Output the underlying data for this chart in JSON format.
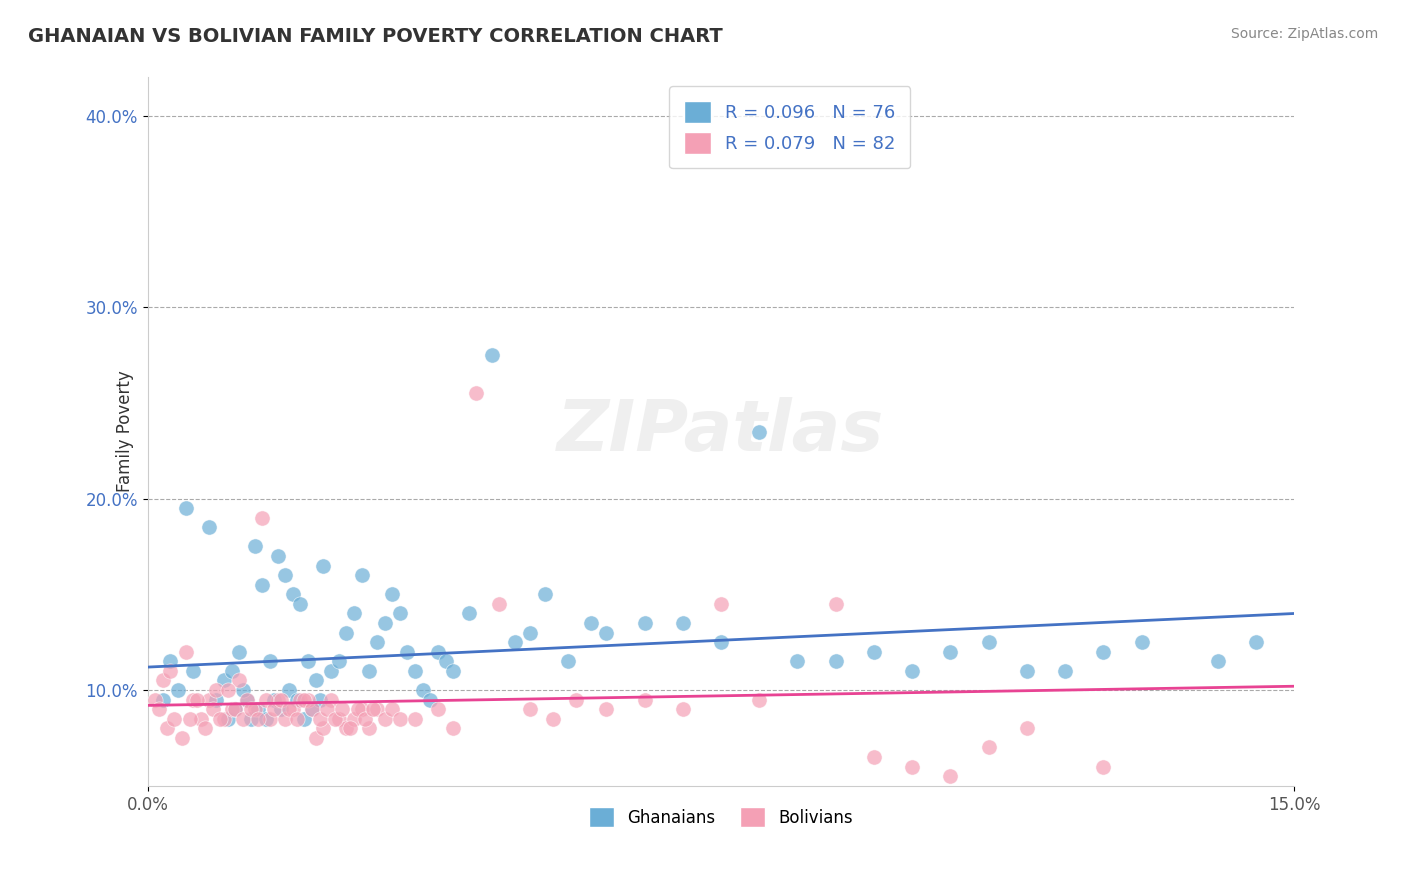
{
  "title": "GHANAIAN VS BOLIVIAN FAMILY POVERTY CORRELATION CHART",
  "source": "Source: ZipAtlas.com",
  "xlabel_ticks": [
    "0.0%",
    "15.0%"
  ],
  "ylabel_ticks": [
    "10.0%",
    "20.0%",
    "30.0%",
    "40.0%"
  ],
  "xlim": [
    0.0,
    15.0
  ],
  "ylim": [
    5.0,
    42.0
  ],
  "ytick_vals": [
    10.0,
    20.0,
    30.0,
    40.0
  ],
  "xtick_vals": [
    0.0,
    15.0
  ],
  "ghanaian_color": "#6baed6",
  "bolivian_color": "#f4a0b5",
  "ghanaian_line_color": "#4472c4",
  "bolivian_line_color": "#e84393",
  "R_ghanaian": 0.096,
  "N_ghanaian": 76,
  "R_bolivian": 0.079,
  "N_bolivian": 82,
  "ghanaian_trend": [
    11.2,
    14.0
  ],
  "bolivian_trend": [
    9.2,
    10.2
  ],
  "watermark": "ZIPatlas",
  "legend_labels": [
    "Ghanaians",
    "Bolivians"
  ],
  "ghanaian_scatter_x": [
    0.3,
    0.5,
    0.8,
    1.0,
    1.1,
    1.2,
    1.3,
    1.4,
    1.5,
    1.6,
    1.7,
    1.8,
    1.9,
    2.0,
    2.1,
    2.2,
    2.3,
    2.4,
    2.5,
    2.6,
    2.7,
    2.8,
    2.9,
    3.0,
    3.1,
    3.2,
    3.3,
    3.4,
    3.5,
    3.6,
    3.7,
    3.8,
    3.9,
    4.0,
    4.2,
    4.5,
    4.8,
    5.0,
    5.2,
    5.5,
    5.8,
    6.0,
    6.5,
    7.0,
    7.5,
    8.0,
    8.5,
    9.0,
    9.5,
    10.0,
    10.5,
    11.0,
    11.5,
    12.0,
    12.5,
    13.0,
    14.0,
    14.5,
    0.2,
    0.4,
    0.6,
    0.9,
    1.05,
    1.15,
    1.25,
    1.35,
    1.45,
    1.55,
    1.65,
    1.75,
    1.85,
    1.95,
    2.05,
    2.15,
    2.25
  ],
  "ghanaian_scatter_y": [
    11.5,
    19.5,
    18.5,
    10.5,
    11.0,
    12.0,
    9.5,
    17.5,
    15.5,
    11.5,
    17.0,
    16.0,
    15.0,
    14.5,
    11.5,
    10.5,
    16.5,
    11.0,
    11.5,
    13.0,
    14.0,
    16.0,
    11.0,
    12.5,
    13.5,
    15.0,
    14.0,
    12.0,
    11.0,
    10.0,
    9.5,
    12.0,
    11.5,
    11.0,
    14.0,
    27.5,
    12.5,
    13.0,
    15.0,
    11.5,
    13.5,
    13.0,
    13.5,
    13.5,
    12.5,
    23.5,
    11.5,
    11.5,
    12.0,
    11.0,
    12.0,
    12.5,
    11.0,
    11.0,
    12.0,
    12.5,
    11.5,
    12.5,
    9.5,
    10.0,
    11.0,
    9.5,
    8.5,
    9.0,
    10.0,
    8.5,
    9.0,
    8.5,
    9.5,
    9.0,
    10.0,
    9.5,
    8.5,
    9.0,
    9.5
  ],
  "bolivian_scatter_x": [
    0.1,
    0.2,
    0.3,
    0.5,
    0.6,
    0.7,
    0.8,
    0.9,
    1.0,
    1.1,
    1.2,
    1.3,
    1.4,
    1.5,
    1.6,
    1.7,
    1.8,
    1.9,
    2.0,
    2.1,
    2.2,
    2.3,
    2.4,
    2.5,
    2.6,
    2.7,
    2.8,
    2.9,
    3.0,
    3.1,
    3.2,
    3.3,
    3.5,
    3.8,
    4.0,
    4.3,
    4.6,
    5.0,
    5.3,
    5.6,
    6.0,
    6.5,
    7.0,
    7.5,
    8.0,
    9.0,
    9.5,
    10.0,
    10.5,
    11.0,
    11.5,
    12.5,
    0.15,
    0.25,
    0.35,
    0.45,
    0.55,
    0.65,
    0.75,
    0.85,
    0.95,
    1.05,
    1.15,
    1.25,
    1.35,
    1.45,
    1.55,
    1.65,
    1.75,
    1.85,
    1.95,
    2.05,
    2.15,
    2.25,
    2.35,
    2.45,
    2.55,
    2.65,
    2.75,
    2.85,
    2.95
  ],
  "bolivian_scatter_y": [
    9.5,
    10.5,
    11.0,
    12.0,
    9.5,
    8.5,
    9.5,
    10.0,
    8.5,
    9.0,
    10.5,
    9.5,
    9.0,
    19.0,
    8.5,
    9.5,
    8.5,
    9.0,
    9.5,
    9.5,
    7.5,
    8.0,
    9.5,
    8.5,
    8.0,
    8.5,
    9.0,
    8.0,
    9.0,
    8.5,
    9.0,
    8.5,
    8.5,
    9.0,
    8.0,
    25.5,
    14.5,
    9.0,
    8.5,
    9.5,
    9.0,
    9.5,
    9.0,
    14.5,
    9.5,
    14.5,
    6.5,
    6.0,
    5.5,
    7.0,
    8.0,
    6.0,
    9.0,
    8.0,
    8.5,
    7.5,
    8.5,
    9.5,
    8.0,
    9.0,
    8.5,
    10.0,
    9.0,
    8.5,
    9.0,
    8.5,
    9.5,
    9.0,
    9.5,
    9.0,
    8.5,
    9.5,
    9.0,
    8.5,
    9.0,
    8.5,
    9.0,
    8.0,
    9.0,
    8.5,
    9.0
  ]
}
